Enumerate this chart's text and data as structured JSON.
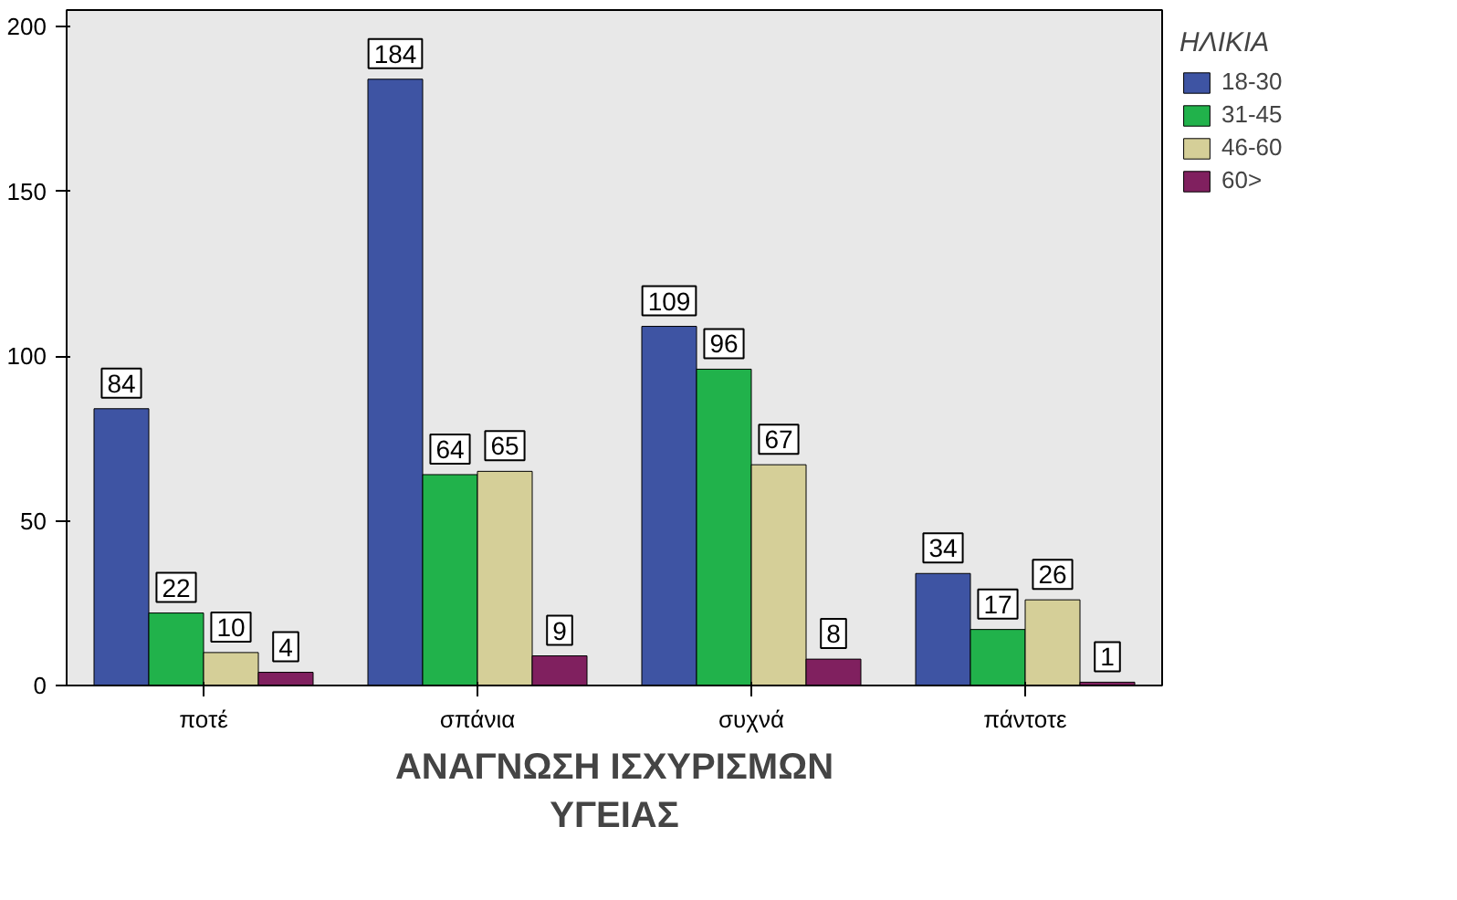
{
  "chart_data": {
    "type": "bar",
    "xlabel": "ΑΝΑΓΝΩΣΗ ΙΣΧΥΡΙΣΜΩΝ ΥΓΕΙΑΣ",
    "legend_title": "ΗΛΙΚΙΑ",
    "categories": [
      "ποτέ",
      "σπάνια",
      "συχνά",
      "πάντοτε"
    ],
    "series": [
      {
        "name": "18-30",
        "color": "#3e54a3",
        "values": [
          84,
          184,
          109,
          34
        ]
      },
      {
        "name": "31-45",
        "color": "#21b24b",
        "values": [
          22,
          64,
          96,
          17
        ]
      },
      {
        "name": "46-60",
        "color": "#d5cf98",
        "values": [
          10,
          65,
          67,
          26
        ]
      },
      {
        "name": "60>",
        "color": "#80205f",
        "values": [
          4,
          9,
          8,
          1
        ]
      }
    ],
    "ylim": [
      0,
      205
    ],
    "yticks": [
      0,
      50,
      100,
      150,
      200
    ],
    "grid": false,
    "legend": "right",
    "data_labels": true
  }
}
